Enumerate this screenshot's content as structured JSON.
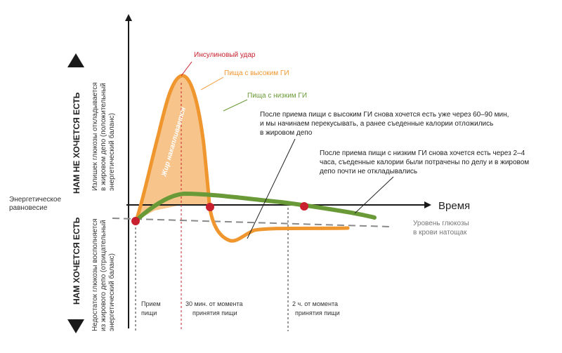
{
  "axes": {
    "time_label": "Время",
    "equilibrium_label": [
      "Энергетическое",
      "равновесие"
    ]
  },
  "side_labels": {
    "not_hungry": "НАМ НЕ ХОЧЕТСЯ ЕСТЬ",
    "hungry": "НАМ ХОЧЕТСЯ ЕСТЬ",
    "excess": [
      "Излишек глюкозы откладывается",
      "в жировом депо (положительный",
      "энергетический баланс)"
    ],
    "deficit": [
      "Недостаток глюкозы восполняется",
      "из жирового депо (отрицательный",
      "энергетический баланс)"
    ]
  },
  "curves": {
    "insulin_spike": "Инсулиновый удар",
    "high_gi": "Пища с высоким ГИ",
    "low_gi": "Пища с низким ГИ",
    "fat_accumulates": "Жир накапливается",
    "fasting_glucose": [
      "Уровень глюкозы",
      "в крови натощак"
    ]
  },
  "notes": {
    "high_gi_note": [
      "После приема пищи с высоким ГИ снова хочется есть уже через 60–90 мин,",
      "и мы начинаем перекусывать, а ранее съеденные калории отложились",
      "в жировом депо"
    ],
    "low_gi_note": [
      "После приема пищи с низким ГИ снова хочется есть через 2–4",
      "часа, съеденные калории были потрачены по делу и в жировом",
      "депо почти не откладывались"
    ]
  },
  "timeline": {
    "meal": [
      "Прием",
      "пищи"
    ],
    "after_30": [
      "30 мин. от момента",
      "принятия пищи"
    ],
    "after_2h": [
      "2 ч. от момента",
      "принятия пищи"
    ]
  },
  "colors": {
    "orange": "#f0962f",
    "orange_fill": "#f7c48b",
    "green": "#6a9a37",
    "red_dot": "#c8202f",
    "dashed_gray": "#8a8a8a",
    "insulin_text": "#c8202f",
    "axis": "#1a1a1a"
  }
}
